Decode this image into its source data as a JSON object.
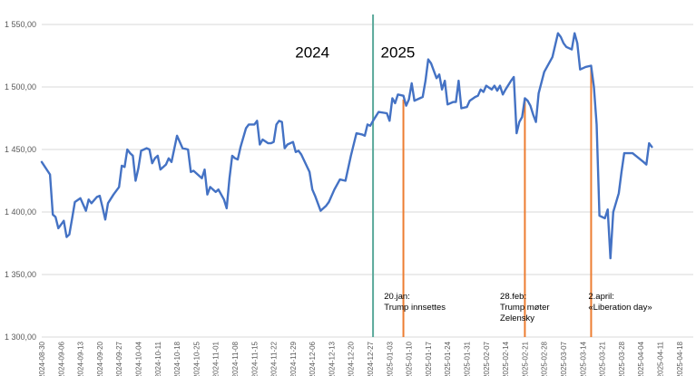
{
  "chart_data": {
    "type": "line",
    "title": "",
    "xlabel": "",
    "ylabel": "",
    "ylim": [
      1300,
      1550
    ],
    "yticks": [
      1300,
      1350,
      1400,
      1450,
      1500,
      1550
    ],
    "ytick_labels": [
      "1 300,00",
      "1 350,00",
      "1 400,00",
      "1 450,00",
      "1 500,00",
      "1 550,00"
    ],
    "grid": "horizontal",
    "line_color": "#4472c4",
    "x_start": "2024-08-30",
    "x_end": "2025-04-23",
    "xtick_labels": [
      "2024-08-30",
      "2024-09-06",
      "2024-09-13",
      "2024-09-20",
      "2024-09-27",
      "2024-10-04",
      "2024-10-11",
      "2024-10-18",
      "2024-10-25",
      "2024-11-01",
      "2024-11-08",
      "2024-11-15",
      "2024-11-22",
      "2024-11-29",
      "2024-12-06",
      "2024-12-13",
      "2024-12-20",
      "2024-12-27",
      "2025-01-03",
      "2025-01-10",
      "2025-01-17",
      "2025-01-24",
      "2025-01-31",
      "2025-02-07",
      "2025-02-14",
      "2025-02-21",
      "2025-02-28",
      "2025-03-07",
      "2025-03-14",
      "2025-03-21",
      "2025-03-28",
      "2025-04-04",
      "2025-04-11",
      "2025-04-18"
    ],
    "series": [
      {
        "values": [
          [
            "2024-08-30",
            1440
          ],
          [
            "2024-09-02",
            1430
          ],
          [
            "2024-09-03",
            1398
          ],
          [
            "2024-09-04",
            1396
          ],
          [
            "2024-09-05",
            1387
          ],
          [
            "2024-09-06",
            1390
          ],
          [
            "2024-09-07",
            1393
          ],
          [
            "2024-09-08",
            1380
          ],
          [
            "2024-09-09",
            1382
          ],
          [
            "2024-09-10",
            1395
          ],
          [
            "2024-09-11",
            1408
          ],
          [
            "2024-09-13",
            1411
          ],
          [
            "2024-09-15",
            1401
          ],
          [
            "2024-09-16",
            1410
          ],
          [
            "2024-09-17",
            1407
          ],
          [
            "2024-09-19",
            1412
          ],
          [
            "2024-09-20",
            1413
          ],
          [
            "2024-09-21",
            1404
          ],
          [
            "2024-09-22",
            1394
          ],
          [
            "2024-09-23",
            1407
          ],
          [
            "2024-09-25",
            1414
          ],
          [
            "2024-09-27",
            1420
          ],
          [
            "2024-09-28",
            1437
          ],
          [
            "2024-09-29",
            1436
          ],
          [
            "2024-09-30",
            1450
          ],
          [
            "2024-10-01",
            1447
          ],
          [
            "2024-10-02",
            1445
          ],
          [
            "2024-10-03",
            1425
          ],
          [
            "2024-10-04",
            1435
          ],
          [
            "2024-10-05",
            1449
          ],
          [
            "2024-10-07",
            1451
          ],
          [
            "2024-10-08",
            1450
          ],
          [
            "2024-10-09",
            1439
          ],
          [
            "2024-10-10",
            1443
          ],
          [
            "2024-10-11",
            1445
          ],
          [
            "2024-10-12",
            1434
          ],
          [
            "2024-10-14",
            1438
          ],
          [
            "2024-10-15",
            1443
          ],
          [
            "2024-10-16",
            1440
          ],
          [
            "2024-10-18",
            1461
          ],
          [
            "2024-10-20",
            1451
          ],
          [
            "2024-10-22",
            1450
          ],
          [
            "2024-10-23",
            1432
          ],
          [
            "2024-10-24",
            1433
          ],
          [
            "2024-10-26",
            1429
          ],
          [
            "2024-10-27",
            1427
          ],
          [
            "2024-10-28",
            1434
          ],
          [
            "2024-10-29",
            1414
          ],
          [
            "2024-10-30",
            1420
          ],
          [
            "2024-11-01",
            1416
          ],
          [
            "2024-11-02",
            1418
          ],
          [
            "2024-11-04",
            1410
          ],
          [
            "2024-11-05",
            1403
          ],
          [
            "2024-11-06",
            1427
          ],
          [
            "2024-11-07",
            1445
          ],
          [
            "2024-11-08",
            1443
          ],
          [
            "2024-11-09",
            1442
          ],
          [
            "2024-11-10",
            1452
          ],
          [
            "2024-11-12",
            1467
          ],
          [
            "2024-11-13",
            1470
          ],
          [
            "2024-11-15",
            1470
          ],
          [
            "2024-11-16",
            1473
          ],
          [
            "2024-11-17",
            1454
          ],
          [
            "2024-11-18",
            1458
          ],
          [
            "2024-11-20",
            1455
          ],
          [
            "2024-11-21",
            1455
          ],
          [
            "2024-11-22",
            1456
          ],
          [
            "2024-11-23",
            1470
          ],
          [
            "2024-11-24",
            1473
          ],
          [
            "2024-11-25",
            1472
          ],
          [
            "2024-11-26",
            1451
          ],
          [
            "2024-11-27",
            1454
          ],
          [
            "2024-11-29",
            1456
          ],
          [
            "2024-11-30",
            1448
          ],
          [
            "2024-12-01",
            1449
          ],
          [
            "2024-12-02",
            1446
          ],
          [
            "2024-12-05",
            1432
          ],
          [
            "2024-12-06",
            1418
          ],
          [
            "2024-12-07",
            1413
          ],
          [
            "2024-12-09",
            1401
          ],
          [
            "2024-12-11",
            1405
          ],
          [
            "2024-12-12",
            1408
          ],
          [
            "2024-12-14",
            1418
          ],
          [
            "2024-12-16",
            1426
          ],
          [
            "2024-12-18",
            1425
          ],
          [
            "2024-12-20",
            1445
          ],
          [
            "2024-12-22",
            1463
          ],
          [
            "2024-12-24",
            1462
          ],
          [
            "2024-12-25",
            1461
          ],
          [
            "2024-12-26",
            1470
          ],
          [
            "2024-12-27",
            1469
          ],
          [
            "2024-12-28",
            1473
          ],
          [
            "2024-12-30",
            1480
          ],
          [
            "2025-01-02",
            1479
          ],
          [
            "2025-01-03",
            1473
          ],
          [
            "2025-01-04",
            1491
          ],
          [
            "2025-01-05",
            1487
          ],
          [
            "2025-01-06",
            1494
          ],
          [
            "2025-01-08",
            1493
          ],
          [
            "2025-01-09",
            1485
          ],
          [
            "2025-01-10",
            1490
          ],
          [
            "2025-01-11",
            1503
          ],
          [
            "2025-01-12",
            1489
          ],
          [
            "2025-01-14",
            1491
          ],
          [
            "2025-01-15",
            1492
          ],
          [
            "2025-01-16",
            1505
          ],
          [
            "2025-01-17",
            1522
          ],
          [
            "2025-01-18",
            1519
          ],
          [
            "2025-01-20",
            1507
          ],
          [
            "2025-01-21",
            1510
          ],
          [
            "2025-01-22",
            1498
          ],
          [
            "2025-01-23",
            1505
          ],
          [
            "2025-01-24",
            1486
          ],
          [
            "2025-01-26",
            1488
          ],
          [
            "2025-01-27",
            1488
          ],
          [
            "2025-01-28",
            1505
          ],
          [
            "2025-01-29",
            1483
          ],
          [
            "2025-01-31",
            1484
          ],
          [
            "2025-02-01",
            1489
          ],
          [
            "2025-02-03",
            1492
          ],
          [
            "2025-02-04",
            1493
          ],
          [
            "2025-02-05",
            1498
          ],
          [
            "2025-02-06",
            1496
          ],
          [
            "2025-02-07",
            1501
          ],
          [
            "2025-02-09",
            1498
          ],
          [
            "2025-02-10",
            1501
          ],
          [
            "2025-02-11",
            1497
          ],
          [
            "2025-02-12",
            1501
          ],
          [
            "2025-02-13",
            1494
          ],
          [
            "2025-02-14",
            1498
          ],
          [
            "2025-02-16",
            1505
          ],
          [
            "2025-02-17",
            1508
          ],
          [
            "2025-02-18",
            1463
          ],
          [
            "2025-02-19",
            1472
          ],
          [
            "2025-02-20",
            1476
          ],
          [
            "2025-02-21",
            1491
          ],
          [
            "2025-02-22",
            1489
          ],
          [
            "2025-02-23",
            1485
          ],
          [
            "2025-02-24",
            1478
          ],
          [
            "2025-02-25",
            1472
          ],
          [
            "2025-02-26",
            1495
          ],
          [
            "2025-02-28",
            1512
          ],
          [
            "2025-03-03",
            1524
          ],
          [
            "2025-03-05",
            1543
          ],
          [
            "2025-03-06",
            1540
          ],
          [
            "2025-03-07",
            1535
          ],
          [
            "2025-03-08",
            1532
          ],
          [
            "2025-03-10",
            1530
          ],
          [
            "2025-03-11",
            1543
          ],
          [
            "2025-03-12",
            1535
          ],
          [
            "2025-03-13",
            1514
          ],
          [
            "2025-03-15",
            1516
          ],
          [
            "2025-03-17",
            1517
          ],
          [
            "2025-03-18",
            1500
          ],
          [
            "2025-03-19",
            1470
          ],
          [
            "2025-03-20",
            1397
          ],
          [
            "2025-03-21",
            1396
          ],
          [
            "2025-03-22",
            1395
          ],
          [
            "2025-03-23",
            1402
          ],
          [
            "2025-03-24",
            1363
          ],
          [
            "2025-03-25",
            1400
          ],
          [
            "2025-03-27",
            1415
          ],
          [
            "2025-03-28",
            1432
          ],
          [
            "2025-03-29",
            1447
          ],
          [
            "2025-04-01",
            1447
          ],
          [
            "2025-04-05",
            1440
          ],
          [
            "2025-04-06",
            1438
          ],
          [
            "2025-04-07",
            1455
          ],
          [
            "2025-04-08",
            1452
          ]
        ]
      }
    ],
    "divider": {
      "x": "2024-12-28",
      "color": "#5aa99a"
    },
    "year_labels": [
      {
        "text": "2024",
        "x": "2024-12-06",
        "y": 1535
      },
      {
        "text": "2025",
        "x": "2025-01-06",
        "y": 1535
      }
    ],
    "annotations": [
      {
        "x": "2025-01-08",
        "y_top": 1490,
        "color": "#ed7d31",
        "lines": [
          "20.jan:",
          "Trump innsettes"
        ],
        "label_x": "2025-01-01"
      },
      {
        "x": "2025-02-21",
        "y_top": 1490,
        "color": "#ed7d31",
        "lines": [
          "28.feb:",
          "Trump møter",
          "Zelensky"
        ],
        "label_x": "2025-02-12"
      },
      {
        "x": "2025-03-17",
        "y_top": 1517,
        "color": "#ed7d31",
        "lines": [
          "2.april:",
          "«Liberation day»"
        ],
        "label_x": "2025-03-16"
      }
    ]
  }
}
